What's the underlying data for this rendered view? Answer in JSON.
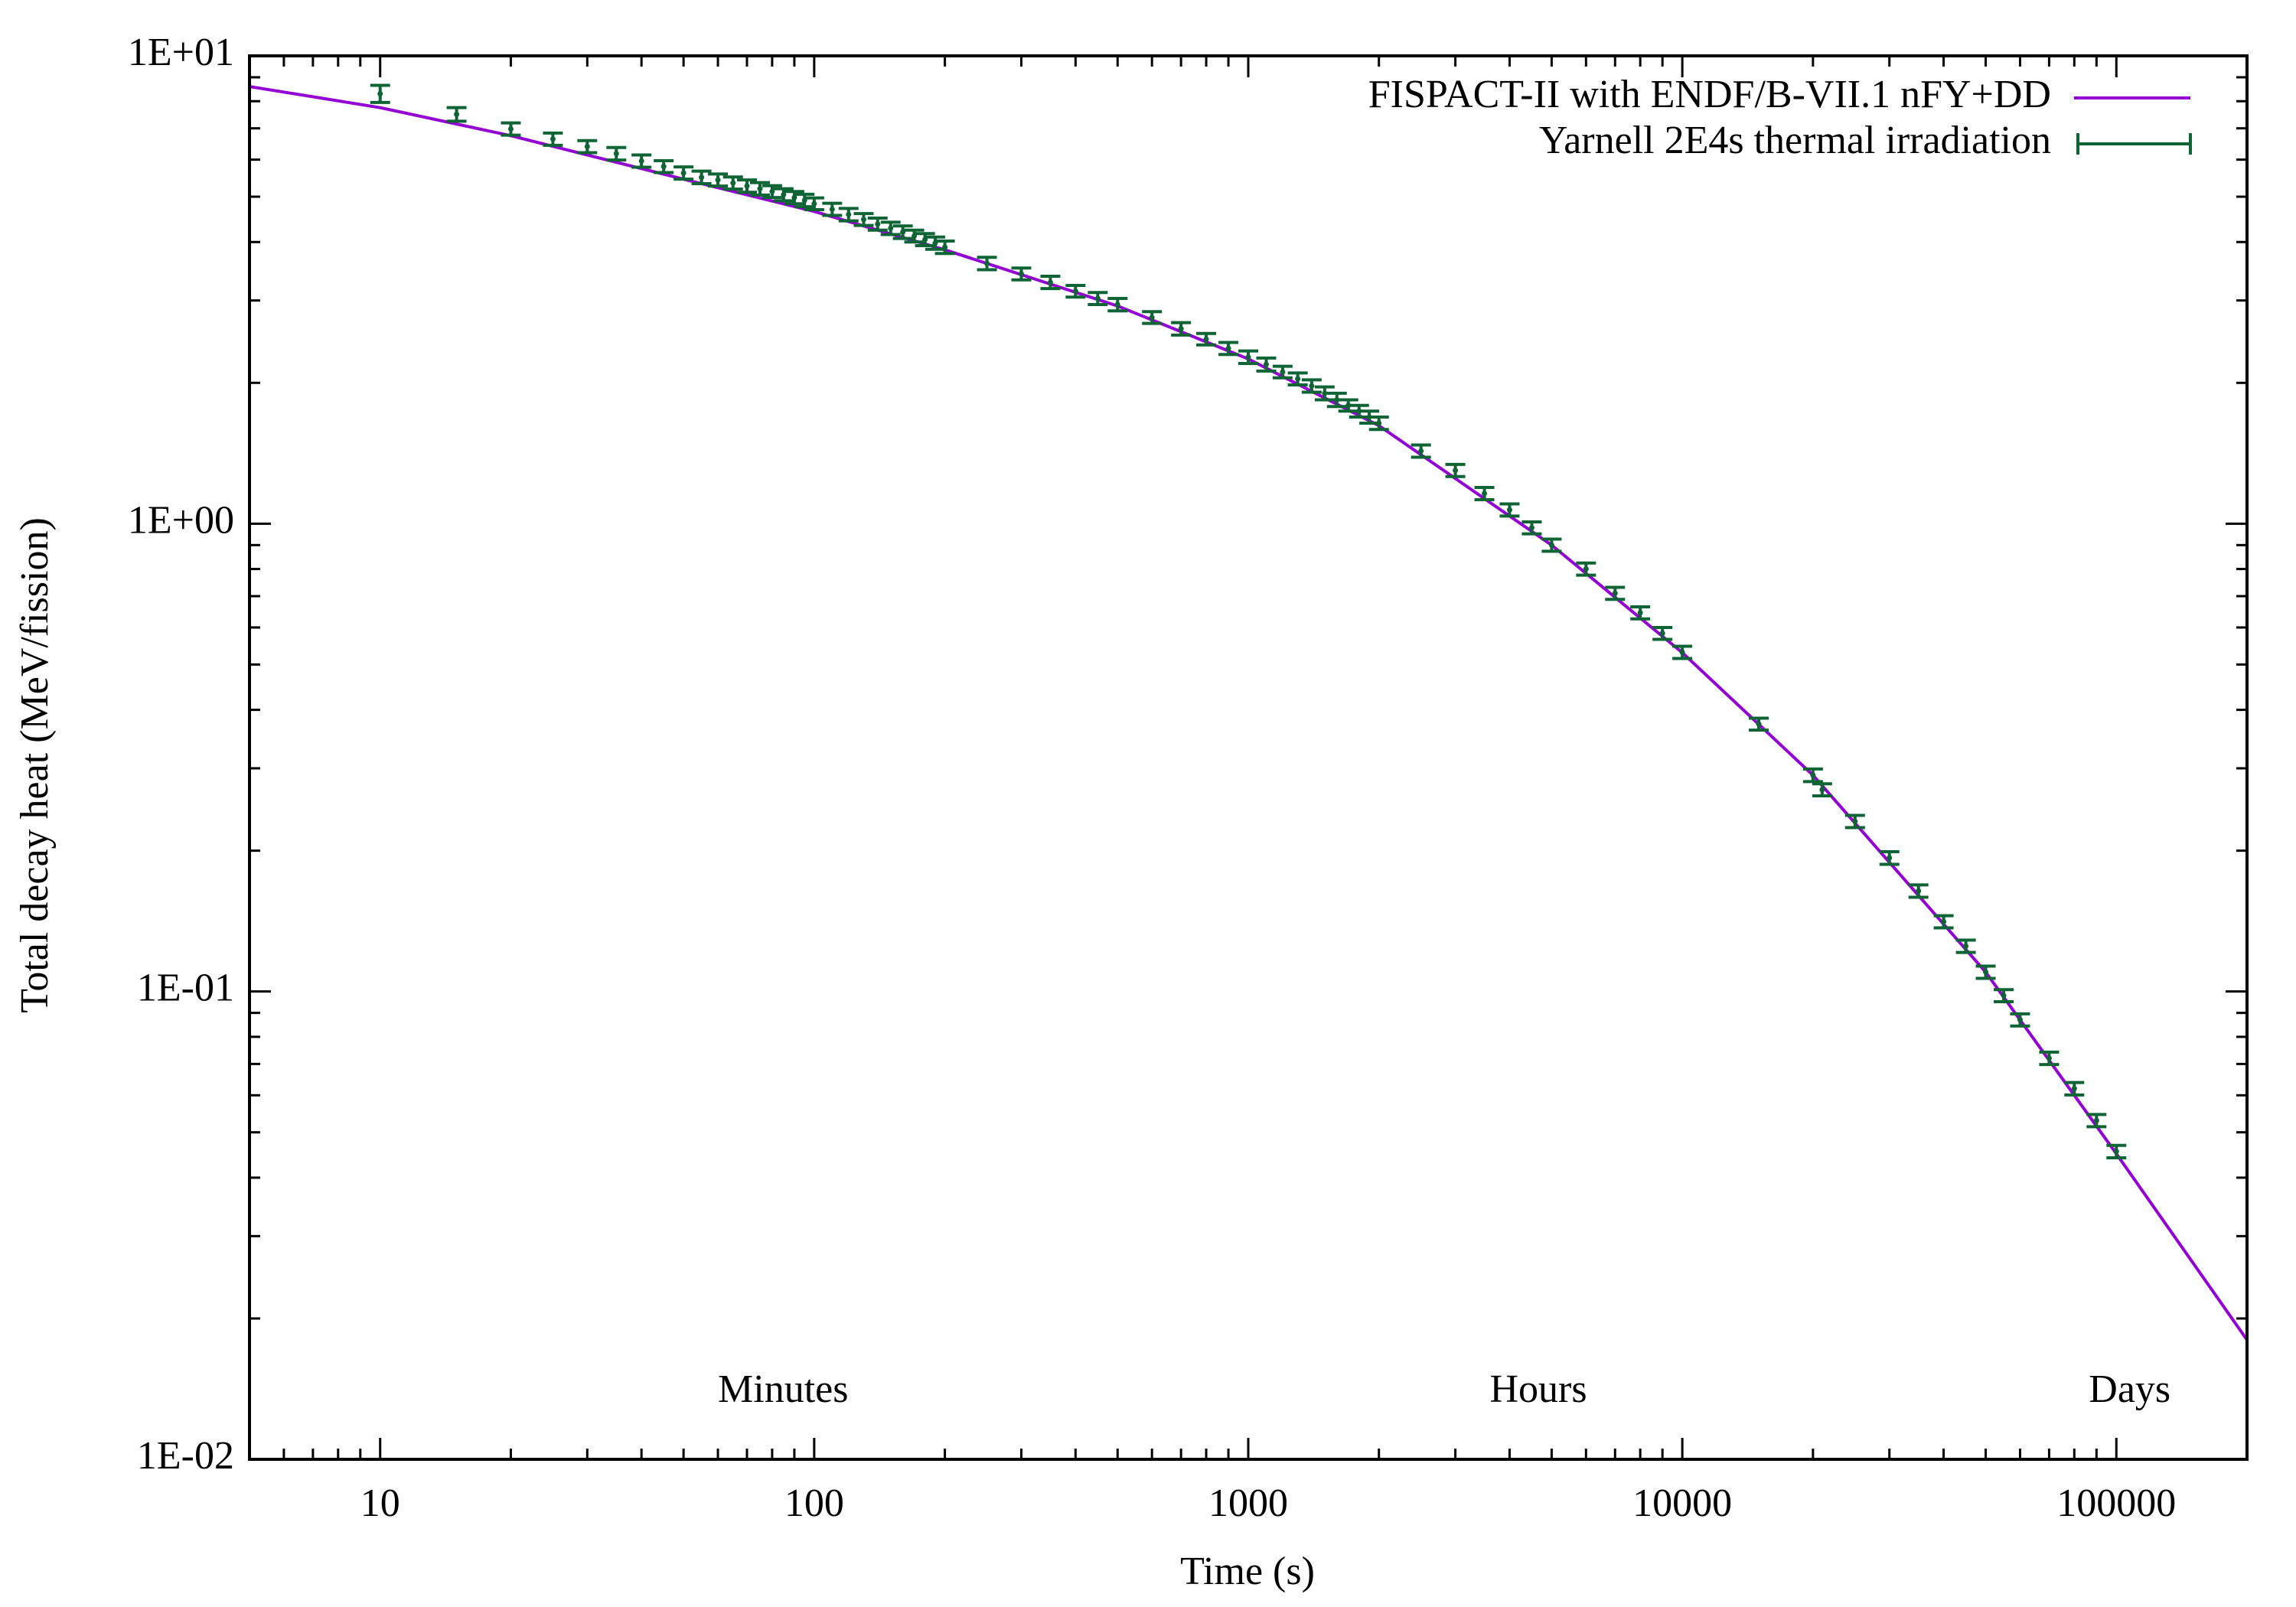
{
  "chart_data": {
    "type": "line",
    "ylabel": "Total decay heat (MeV/fission)",
    "xlabel": "Time (s)",
    "log_x": true,
    "log_y": true,
    "xlim": [
      5,
      200000
    ],
    "ylim": [
      0.01,
      10
    ],
    "xticks": [
      10,
      100,
      1000,
      10000,
      100000
    ],
    "yticks": [
      {
        "value": 0.01,
        "label": "1E-02"
      },
      {
        "value": 0.1,
        "label": "1E-01"
      },
      {
        "value": 1,
        "label": "1E+00"
      },
      {
        "value": 10,
        "label": "1E+01"
      }
    ],
    "legend": "top right",
    "annotations": [
      {
        "text": "Minutes",
        "x": 60
      },
      {
        "text": "Hours",
        "x": 3600
      },
      {
        "text": "Days",
        "x": 86400
      }
    ],
    "series": [
      {
        "name": "FISPACT-II with ENDF/B-VII.1 nFY+DD",
        "type": "line",
        "color": "#9400d3",
        "x": [
          5,
          10,
          20,
          50,
          100,
          200,
          500,
          1000,
          2000,
          5000,
          10000,
          20000,
          50000,
          100000,
          200000
        ],
        "values": [
          8.6,
          7.75,
          6.75,
          5.45,
          4.65,
          3.85,
          2.92,
          2.25,
          1.62,
          0.9,
          0.53,
          0.29,
          0.11,
          0.045,
          0.018
        ]
      },
      {
        "name": "Yarnell 2E4s thermal irradiation",
        "type": "errorbar",
        "color": "#0e6434",
        "x": [
          10,
          15,
          20,
          25,
          30,
          35,
          40,
          45,
          50,
          55,
          60,
          65,
          70,
          75,
          80,
          85,
          90,
          95,
          100,
          110,
          120,
          130,
          140,
          150,
          160,
          170,
          180,
          190,
          200,
          250,
          300,
          350,
          400,
          450,
          500,
          600,
          700,
          800,
          900,
          1000,
          1100,
          1200,
          1300,
          1400,
          1500,
          1600,
          1700,
          1800,
          1900,
          2000,
          2500,
          3000,
          3500,
          4000,
          4500,
          5000,
          6000,
          7000,
          8000,
          9000,
          10000,
          15000,
          20000,
          21000,
          25000,
          30000,
          35000,
          40000,
          45000,
          50000,
          55000,
          60000,
          70000,
          80000,
          90000,
          100000
        ],
        "values": [
          8.3,
          7.5,
          6.98,
          6.64,
          6.4,
          6.18,
          5.96,
          5.8,
          5.62,
          5.5,
          5.43,
          5.35,
          5.27,
          5.2,
          5.13,
          5.05,
          4.98,
          4.91,
          4.83,
          4.7,
          4.58,
          4.47,
          4.37,
          4.28,
          4.2,
          4.12,
          4.05,
          3.98,
          3.9,
          3.6,
          3.42,
          3.28,
          3.14,
          3.03,
          2.94,
          2.76,
          2.61,
          2.48,
          2.37,
          2.27,
          2.19,
          2.11,
          2.04,
          1.97,
          1.9,
          1.84,
          1.79,
          1.74,
          1.69,
          1.64,
          1.43,
          1.3,
          1.16,
          1.07,
          0.98,
          0.9,
          0.8,
          0.71,
          0.645,
          0.583,
          0.531,
          0.373,
          0.29,
          0.27,
          0.231,
          0.193,
          0.164,
          0.141,
          0.125,
          0.11,
          0.098,
          0.087,
          0.072,
          0.062,
          0.053,
          0.0455
        ],
        "errors": [
          0.35,
          0.25,
          0.21,
          0.2,
          0.19,
          0.19,
          0.18,
          0.17,
          0.17,
          0.17,
          0.16,
          0.16,
          0.16,
          0.16,
          0.15,
          0.15,
          0.15,
          0.15,
          0.14,
          0.14,
          0.14,
          0.13,
          0.13,
          0.13,
          0.13,
          0.12,
          0.12,
          0.12,
          0.12,
          0.11,
          0.1,
          0.1,
          0.09,
          0.09,
          0.09,
          0.08,
          0.08,
          0.07,
          0.07,
          0.07,
          0.07,
          0.06,
          0.06,
          0.06,
          0.06,
          0.06,
          0.05,
          0.05,
          0.05,
          0.05,
          0.043,
          0.039,
          0.035,
          0.032,
          0.029,
          0.027,
          0.024,
          0.021,
          0.019,
          0.017,
          0.016,
          0.011,
          0.009,
          0.008,
          0.007,
          0.006,
          0.005,
          0.0042,
          0.0038,
          0.0033,
          0.0029,
          0.0026,
          0.0022,
          0.0019,
          0.0016,
          0.0014
        ]
      }
    ]
  }
}
